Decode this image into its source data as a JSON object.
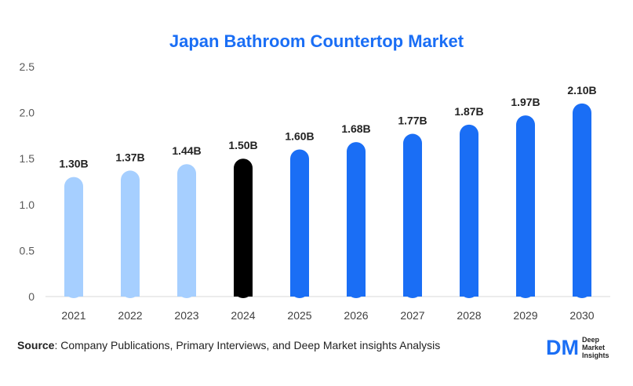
{
  "chart_data": {
    "type": "bar",
    "title": "Japan Bathroom Countertop Market",
    "categories": [
      "2021",
      "2022",
      "2023",
      "2024",
      "2025",
      "2026",
      "2027",
      "2028",
      "2029",
      "2030"
    ],
    "values": [
      1.3,
      1.37,
      1.44,
      1.5,
      1.6,
      1.68,
      1.77,
      1.87,
      1.97,
      2.1
    ],
    "labels": [
      "1.30B",
      "1.37B",
      "1.44B",
      "1.50B",
      "1.60B",
      "1.68B",
      "1.77B",
      "1.87B",
      "1.97B",
      "2.10B"
    ],
    "colors": [
      "#a6cfff",
      "#a6cfff",
      "#a6cfff",
      "#000000",
      "#1a6ef5",
      "#1a6ef5",
      "#1a6ef5",
      "#1a6ef5",
      "#1a6ef5",
      "#1a6ef5"
    ],
    "yticks": [
      "0",
      "0.5",
      "1.0",
      "1.5",
      "2.0",
      "2.5"
    ],
    "ytick_values": [
      0,
      0.5,
      1.0,
      1.5,
      2.0,
      2.5
    ],
    "ylim": [
      0,
      2.5
    ],
    "xlabel": "",
    "ylabel": ""
  },
  "source": {
    "label": "Source",
    "text": ": Company Publications, Primary Interviews, and Deep Market insights Analysis"
  },
  "logo": {
    "mark": "DM",
    "line1": "Deep",
    "line2": "Market",
    "line3": "Insights"
  },
  "colors": {
    "title": "#1a6ef5",
    "historical": "#a6cfff",
    "current": "#000000",
    "forecast": "#1a6ef5"
  }
}
